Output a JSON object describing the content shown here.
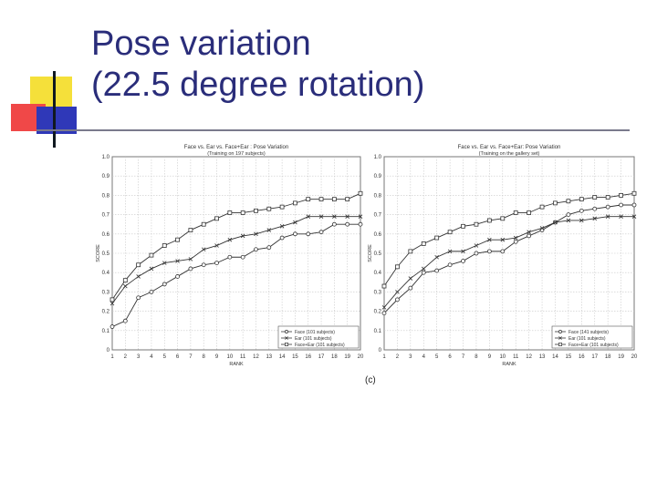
{
  "slide": {
    "title_line1": "Pose variation",
    "title_line2": "(22.5 degree rotation)",
    "caption": "(c)"
  },
  "chart_data": [
    {
      "type": "line",
      "title": "Face vs. Ear vs. Face+Ear : Pose Variation",
      "subtitle": "(Training on 197 subjects)",
      "xlabel": "RANK",
      "ylabel": "SCORE",
      "xlim": [
        1,
        20
      ],
      "ylim": [
        0,
        1.0
      ],
      "grid": true,
      "legend_position": "bottom-right",
      "x": [
        1,
        2,
        3,
        4,
        5,
        6,
        7,
        8,
        9,
        10,
        11,
        12,
        13,
        14,
        15,
        16,
        17,
        18,
        19,
        20
      ],
      "yticks": [
        "0",
        "0.1",
        "0.2",
        "0.3",
        "0.4",
        "0.5",
        "0.6",
        "0.7",
        "0.8",
        "0.9",
        "1.0"
      ],
      "series": [
        {
          "name": "Face (101 subjects)",
          "marker": "circle",
          "values": [
            0.12,
            0.15,
            0.27,
            0.3,
            0.34,
            0.38,
            0.42,
            0.44,
            0.45,
            0.48,
            0.48,
            0.52,
            0.53,
            0.58,
            0.6,
            0.6,
            0.61,
            0.65,
            0.65,
            0.65
          ]
        },
        {
          "name": "Ear (101 subjects)",
          "marker": "x",
          "values": [
            0.24,
            0.33,
            0.38,
            0.42,
            0.45,
            0.46,
            0.47,
            0.52,
            0.54,
            0.57,
            0.59,
            0.6,
            0.62,
            0.64,
            0.66,
            0.69,
            0.69,
            0.69,
            0.69,
            0.69
          ]
        },
        {
          "name": "Face+Ear (101 subjects)",
          "marker": "square",
          "values": [
            0.26,
            0.36,
            0.44,
            0.49,
            0.54,
            0.57,
            0.62,
            0.65,
            0.68,
            0.71,
            0.71,
            0.72,
            0.73,
            0.74,
            0.76,
            0.78,
            0.78,
            0.78,
            0.78,
            0.81
          ]
        }
      ]
    },
    {
      "type": "line",
      "title": "Face vs. Ear vs. Face+Ear: Pose Variation",
      "subtitle": "(Training on the gallery set)",
      "xlabel": "RANK",
      "ylabel": "SCORE",
      "xlim": [
        1,
        20
      ],
      "ylim": [
        0,
        1.0
      ],
      "grid": true,
      "legend_position": "bottom-right",
      "x": [
        1,
        2,
        3,
        4,
        5,
        6,
        7,
        8,
        9,
        10,
        11,
        12,
        13,
        14,
        15,
        16,
        17,
        18,
        19,
        20
      ],
      "yticks": [
        "0",
        "0.1",
        "0.2",
        "0.3",
        "0.4",
        "0.5",
        "0.6",
        "0.7",
        "0.8",
        "0.9",
        "1.0"
      ],
      "series": [
        {
          "name": "Face (141 subjects)",
          "marker": "circle",
          "values": [
            0.19,
            0.26,
            0.32,
            0.4,
            0.41,
            0.44,
            0.46,
            0.5,
            0.51,
            0.51,
            0.56,
            0.59,
            0.62,
            0.66,
            0.7,
            0.72,
            0.73,
            0.74,
            0.75,
            0.75
          ]
        },
        {
          "name": "Ear (101 subjects)",
          "marker": "x",
          "values": [
            0.22,
            0.3,
            0.37,
            0.42,
            0.48,
            0.51,
            0.51,
            0.54,
            0.57,
            0.57,
            0.58,
            0.61,
            0.63,
            0.66,
            0.67,
            0.67,
            0.68,
            0.69,
            0.69,
            0.69
          ]
        },
        {
          "name": "Face+Ear (101 subjects)",
          "marker": "square",
          "values": [
            0.33,
            0.43,
            0.51,
            0.55,
            0.58,
            0.61,
            0.64,
            0.65,
            0.67,
            0.68,
            0.71,
            0.71,
            0.74,
            0.76,
            0.77,
            0.78,
            0.79,
            0.79,
            0.8,
            0.81
          ]
        }
      ]
    }
  ]
}
